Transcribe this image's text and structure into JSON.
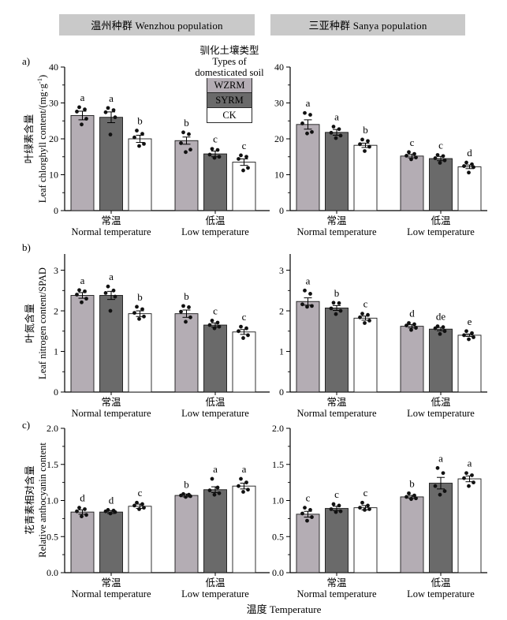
{
  "headers": [
    {
      "label": "温州种群 Wenzhou population"
    },
    {
      "label": "三亚种群 Sanya population"
    }
  ],
  "legend": {
    "title_zh": "驯化土壤类型",
    "title_en_1": "Types of",
    "title_en_2": "domesticated soil",
    "items": [
      {
        "label": "WZRM",
        "color": "#b4adb4"
      },
      {
        "label": "SYRM",
        "color": "#6a6a6a"
      },
      {
        "label": "CK",
        "color": "#ffffff"
      }
    ]
  },
  "panels": [
    {
      "letter": "a)",
      "ylabel_zh": "叶绿素含量",
      "ylabel_en_pre": "Leaf chlorghyll content/(mg·g",
      "ylabel_en_sup": "-1",
      "ylabel_en_post": ")"
    },
    {
      "letter": "b)",
      "ylabel_zh": "叶氮含量",
      "ylabel_en_pre": "Leaf nitrogen content/SPAD",
      "ylabel_en_sup": "",
      "ylabel_en_post": ""
    },
    {
      "letter": "c)",
      "ylabel_zh": "花青素相对含量",
      "ylabel_en_pre": "Relative anthocyanin content",
      "ylabel_en_sup": "",
      "ylabel_en_post": ""
    }
  ],
  "xaxis": {
    "title": "温度 Temperature",
    "categories": [
      {
        "zh": "常温",
        "en": "Normal temperature"
      },
      {
        "zh": "低温",
        "en": "Low temperature"
      }
    ]
  },
  "colors": {
    "wzrm": "#b4adb4",
    "syrm": "#6a6a6a",
    "ck": "#ffffff",
    "header_bg": "#c9c9c9",
    "axis": "#000000",
    "dot": "#111111"
  },
  "chart_data": [
    {
      "type": "bar",
      "panel": "a",
      "population": "Wenzhou",
      "title": "温州种群 Wenzhou population",
      "ylabel": "叶绿素含量 Leaf chlorghyll content/(mg·g⁻¹)",
      "ylim": [
        0,
        40
      ],
      "yticks": [
        0,
        10,
        20,
        30,
        40
      ],
      "ytick_labels": [
        "0",
        "10",
        "20",
        "30",
        "40"
      ],
      "categories": [
        "常温 Normal temperature",
        "低温 Low temperature"
      ],
      "series": [
        {
          "name": "WZRM",
          "values": [
            26.5,
            19.5
          ],
          "errors": [
            1.2,
            1.0
          ],
          "letters": [
            "a",
            "b"
          ],
          "points": [
            [
              28.8,
              28.2,
              27.6,
              25.6,
              24.0
            ],
            [
              21.8,
              21.3,
              18.8,
              17.0,
              16.3
            ]
          ]
        },
        {
          "name": "SYRM",
          "values": [
            26.0,
            15.8
          ],
          "errors": [
            1.5,
            0.8
          ],
          "letters": [
            "a",
            "c"
          ],
          "points": [
            [
              28.6,
              28.0,
              27.4,
              26.0,
              21.2
            ],
            [
              17.2,
              16.9,
              15.6,
              15.0,
              14.7
            ]
          ]
        },
        {
          "name": "CK",
          "values": [
            20.0,
            13.5
          ],
          "errors": [
            1.0,
            0.9
          ],
          "letters": [
            "b",
            "c"
          ],
          "points": [
            [
              22.3,
              21.4,
              20.4,
              18.6,
              18.0
            ],
            [
              15.4,
              15.0,
              14.4,
              11.9,
              11.2
            ]
          ]
        }
      ]
    },
    {
      "type": "bar",
      "panel": "a",
      "population": "Sanya",
      "title": "三亚种群 Sanya population",
      "ylabel": "叶绿素含量 Leaf chlorghyll content/(mg·g⁻¹)",
      "ylim": [
        0,
        40
      ],
      "yticks": [
        0,
        10,
        20,
        30,
        40
      ],
      "ytick_labels": [
        "0",
        "10",
        "20",
        "30",
        "40"
      ],
      "categories": [
        "常温 Normal temperature",
        "低温 Low temperature"
      ],
      "series": [
        {
          "name": "WZRM",
          "values": [
            24.0,
            15.2
          ],
          "errors": [
            1.3,
            0.5
          ],
          "letters": [
            "a",
            "c"
          ],
          "points": [
            [
              27.2,
              26.7,
              24.3,
              21.9,
              21.5
            ],
            [
              16.3,
              15.8,
              15.3,
              14.8,
              14.3
            ]
          ]
        },
        {
          "name": "SYRM",
          "values": [
            21.8,
            14.5
          ],
          "errors": [
            0.8,
            0.6
          ],
          "letters": [
            "a",
            "c"
          ],
          "points": [
            [
              23.4,
              22.7,
              21.7,
              20.9,
              20.2
            ],
            [
              15.5,
              15.2,
              14.6,
              14.0,
              13.3
            ]
          ]
        },
        {
          "name": "CK",
          "values": [
            18.2,
            12.2
          ],
          "errors": [
            0.6,
            0.5
          ],
          "letters": [
            "b",
            "d"
          ],
          "points": [
            [
              19.8,
              19.4,
              18.5,
              17.8,
              16.6
            ],
            [
              13.4,
              12.9,
              12.4,
              12.1,
              10.6
            ]
          ]
        }
      ]
    },
    {
      "type": "bar",
      "panel": "b",
      "population": "Wenzhou",
      "title": "温州种群 Wenzhou population",
      "ylabel": "叶氮含量 Leaf nitrogen content/SPAD",
      "ylim": [
        0,
        3.4
      ],
      "yticks": [
        0,
        1,
        2,
        3
      ],
      "ytick_labels": [
        "0",
        "1",
        "2",
        "3"
      ],
      "categories": [
        "常温 Normal temperature",
        "低温 Low temperature"
      ],
      "series": [
        {
          "name": "WZRM",
          "values": [
            2.38,
            1.93
          ],
          "errors": [
            0.07,
            0.09
          ],
          "letters": [
            "a",
            "b"
          ],
          "points": [
            [
              2.51,
              2.48,
              2.4,
              2.3,
              2.21
            ],
            [
              2.12,
              2.09,
              1.98,
              1.84,
              1.73
            ]
          ]
        },
        {
          "name": "SYRM",
          "values": [
            2.38,
            1.65
          ],
          "errors": [
            0.1,
            0.05
          ],
          "letters": [
            "a",
            "c"
          ],
          "points": [
            [
              2.6,
              2.5,
              2.44,
              2.35,
              2.0
            ],
            [
              1.76,
              1.71,
              1.65,
              1.61,
              1.57
            ]
          ]
        },
        {
          "name": "CK",
          "values": [
            1.93,
            1.48
          ],
          "errors": [
            0.07,
            0.06
          ],
          "letters": [
            "b",
            "c"
          ],
          "points": [
            [
              2.1,
              2.04,
              1.95,
              1.86,
              1.8
            ],
            [
              1.61,
              1.57,
              1.5,
              1.4,
              1.33
            ]
          ]
        }
      ]
    },
    {
      "type": "bar",
      "panel": "b",
      "population": "Sanya",
      "title": "三亚种群 Sanya population",
      "ylabel": "叶氮含量 Leaf nitrogen content/SPAD",
      "ylim": [
        0,
        3.4
      ],
      "yticks": [
        0,
        1,
        2,
        3
      ],
      "ytick_labels": [
        "0",
        "1",
        "2",
        "3"
      ],
      "categories": [
        "常温 Normal temperature",
        "低温 Low temperature"
      ],
      "series": [
        {
          "name": "WZRM",
          "values": [
            2.23,
            1.62
          ],
          "errors": [
            0.09,
            0.04
          ],
          "letters": [
            "a",
            "d"
          ],
          "points": [
            [
              2.5,
              2.42,
              2.16,
              2.12,
              2.1
            ],
            [
              1.7,
              1.67,
              1.64,
              1.58,
              1.53
            ]
          ]
        },
        {
          "name": "SYRM",
          "values": [
            2.07,
            1.55
          ],
          "errors": [
            0.06,
            0.04
          ],
          "letters": [
            "b",
            "de"
          ],
          "points": [
            [
              2.2,
              2.19,
              2.06,
              2.0,
              1.92
            ],
            [
              1.62,
              1.6,
              1.57,
              1.5,
              1.43
            ]
          ]
        },
        {
          "name": "CK",
          "values": [
            1.82,
            1.4
          ],
          "errors": [
            0.05,
            0.03
          ],
          "letters": [
            "c",
            "e"
          ],
          "points": [
            [
              1.93,
              1.9,
              1.84,
              1.76,
              1.7
            ],
            [
              1.5,
              1.45,
              1.4,
              1.35,
              1.3
            ]
          ]
        }
      ]
    },
    {
      "type": "bar",
      "panel": "c",
      "population": "Wenzhou",
      "title": "温州种群 Wenzhou population",
      "ylabel": "花青素相对含量 Relative anthocyanin content",
      "ylim": [
        0,
        2.0
      ],
      "yticks": [
        0,
        0.5,
        1.0,
        1.5,
        2.0
      ],
      "ytick_labels": [
        "0.0",
        "0.5",
        "1.0",
        "1.5",
        "2.0"
      ],
      "categories": [
        "常温 Normal temperature",
        "低温 Low temperature"
      ],
      "series": [
        {
          "name": "WZRM",
          "values": [
            0.84,
            1.07
          ],
          "errors": [
            0.03,
            0.02
          ],
          "letters": [
            "d",
            "b"
          ],
          "points": [
            [
              0.9,
              0.88,
              0.85,
              0.8,
              0.78
            ],
            [
              1.09,
              1.08,
              1.07,
              1.06,
              1.05
            ]
          ]
        },
        {
          "name": "SYRM",
          "values": [
            0.84,
            1.15
          ],
          "errors": [
            0.02,
            0.04
          ],
          "letters": [
            "d",
            "a"
          ],
          "points": [
            [
              0.87,
              0.86,
              0.85,
              0.84,
              0.82
            ],
            [
              1.3,
              1.18,
              1.14,
              1.1,
              1.08
            ]
          ]
        },
        {
          "name": "CK",
          "values": [
            0.92,
            1.2
          ],
          "errors": [
            0.03,
            0.04
          ],
          "letters": [
            "c",
            "a"
          ],
          "points": [
            [
              0.97,
              0.95,
              0.93,
              0.9,
              0.88
            ],
            [
              1.3,
              1.25,
              1.2,
              1.15,
              1.12
            ]
          ]
        }
      ]
    },
    {
      "type": "bar",
      "panel": "c",
      "population": "Sanya",
      "title": "三亚种群 Sanya population",
      "ylabel": "花青素相对含量 Relative anthocyanin content",
      "ylim": [
        0,
        2.0
      ],
      "yticks": [
        0,
        0.5,
        1.0,
        1.5,
        2.0
      ],
      "ytick_labels": [
        "0.0",
        "0.5",
        "1.0",
        "1.5",
        "2.0"
      ],
      "categories": [
        "常温 Normal temperature",
        "低温 Low temperature"
      ],
      "series": [
        {
          "name": "WZRM",
          "values": [
            0.81,
            1.05
          ],
          "errors": [
            0.04,
            0.02
          ],
          "letters": [
            "c",
            "b"
          ],
          "points": [
            [
              0.9,
              0.87,
              0.82,
              0.77,
              0.72
            ],
            [
              1.1,
              1.07,
              1.05,
              1.03,
              1.02
            ]
          ]
        },
        {
          "name": "SYRM",
          "values": [
            0.89,
            1.24
          ],
          "errors": [
            0.03,
            0.08
          ],
          "letters": [
            "c",
            "a"
          ],
          "points": [
            [
              0.95,
              0.93,
              0.88,
              0.85,
              0.84
            ],
            [
              1.45,
              1.38,
              1.2,
              1.13,
              1.08
            ]
          ]
        },
        {
          "name": "CK",
          "values": [
            0.9,
            1.3
          ],
          "errors": [
            0.03,
            0.04
          ],
          "letters": [
            "c",
            "a"
          ],
          "points": [
            [
              0.97,
              0.93,
              0.9,
              0.88,
              0.87
            ],
            [
              1.38,
              1.35,
              1.31,
              1.25,
              1.2
            ]
          ]
        }
      ]
    }
  ]
}
